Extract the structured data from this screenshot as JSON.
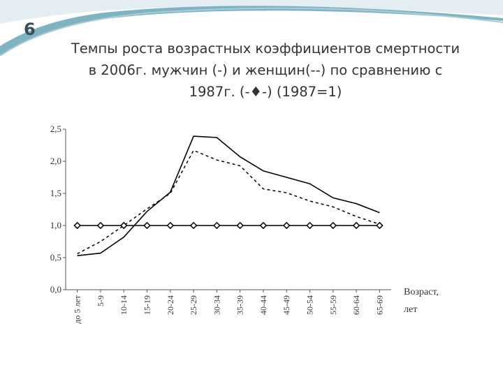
{
  "slide": {
    "number": "6"
  },
  "title": {
    "line1": "Темпы роста возрастных коэффициентов смертности",
    "line2": "в 2006г. мужчин (-) и женщин(--) по сравнению с",
    "line3": "1987г. (-♦-) (1987=1)"
  },
  "colors": {
    "decor_wave": "#7fb3c1",
    "decor_light": "#d3e4ea",
    "line": "#000000",
    "text": "#333333"
  },
  "chart_data": {
    "type": "line",
    "title": "",
    "xlabel_line1": "Возраст,",
    "xlabel_line2": "лет",
    "ylabel": "",
    "ylim": [
      0,
      2.5
    ],
    "yticks": [
      "0,0",
      "0,5",
      "1,0",
      "1,5",
      "2,0",
      "2,5"
    ],
    "ytick_values": [
      0,
      0.5,
      1.0,
      1.5,
      2.0,
      2.5
    ],
    "categories": [
      "до 5 лет",
      "5-9",
      "10-14",
      "15-19",
      "20-24",
      "25-29",
      "30-34",
      "35-39",
      "40-44",
      "45-49",
      "50-54",
      "55-59",
      "60-64",
      "65-69"
    ],
    "grid": false,
    "series": [
      {
        "style": "solid",
        "values": [
          0.53,
          0.57,
          0.82,
          1.22,
          1.52,
          2.39,
          2.37,
          2.07,
          1.85,
          1.75,
          1.65,
          1.43,
          1.34,
          1.2
        ]
      },
      {
        "style": "dashed",
        "values": [
          0.56,
          0.75,
          1.0,
          1.26,
          1.5,
          2.17,
          2.02,
          1.93,
          1.57,
          1.51,
          1.38,
          1.29,
          1.14,
          1.02
        ]
      },
      {
        "style": "diamond",
        "values": [
          1,
          1,
          1,
          1,
          1,
          1,
          1,
          1,
          1,
          1,
          1,
          1,
          1,
          1
        ]
      }
    ]
  }
}
